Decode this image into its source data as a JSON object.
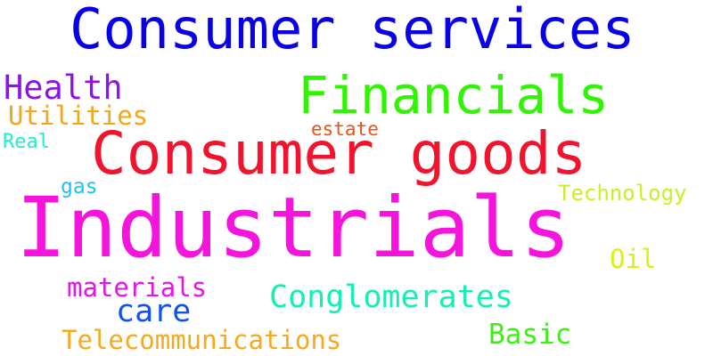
{
  "word_cloud": {
    "words": [
      {
        "text": "Consumer services",
        "color": "#0a00e6"
      },
      {
        "text": "Financials",
        "color": "#2ef600"
      },
      {
        "text": "Consumer goods",
        "color": "#f0142e"
      },
      {
        "text": "Industrials",
        "color": "#f514dc"
      },
      {
        "text": "Health",
        "color": "#8c14e6"
      },
      {
        "text": "Utilities",
        "color": "#f5a518"
      },
      {
        "text": "Real",
        "color": "#1ef0c8"
      },
      {
        "text": "estate",
        "color": "#f05014"
      },
      {
        "text": "gas",
        "color": "#1ec3f0"
      },
      {
        "text": "Technology",
        "color": "#c8f028"
      },
      {
        "text": "Oil",
        "color": "#dcf014"
      },
      {
        "text": "materials",
        "color": "#e614e6"
      },
      {
        "text": "Conglomerates",
        "color": "#14f0b4"
      },
      {
        "text": "care",
        "color": "#1450f0"
      },
      {
        "text": "Basic",
        "color": "#3cf014"
      },
      {
        "text": "Telecommunications",
        "color": "#f5aa1e"
      }
    ]
  }
}
